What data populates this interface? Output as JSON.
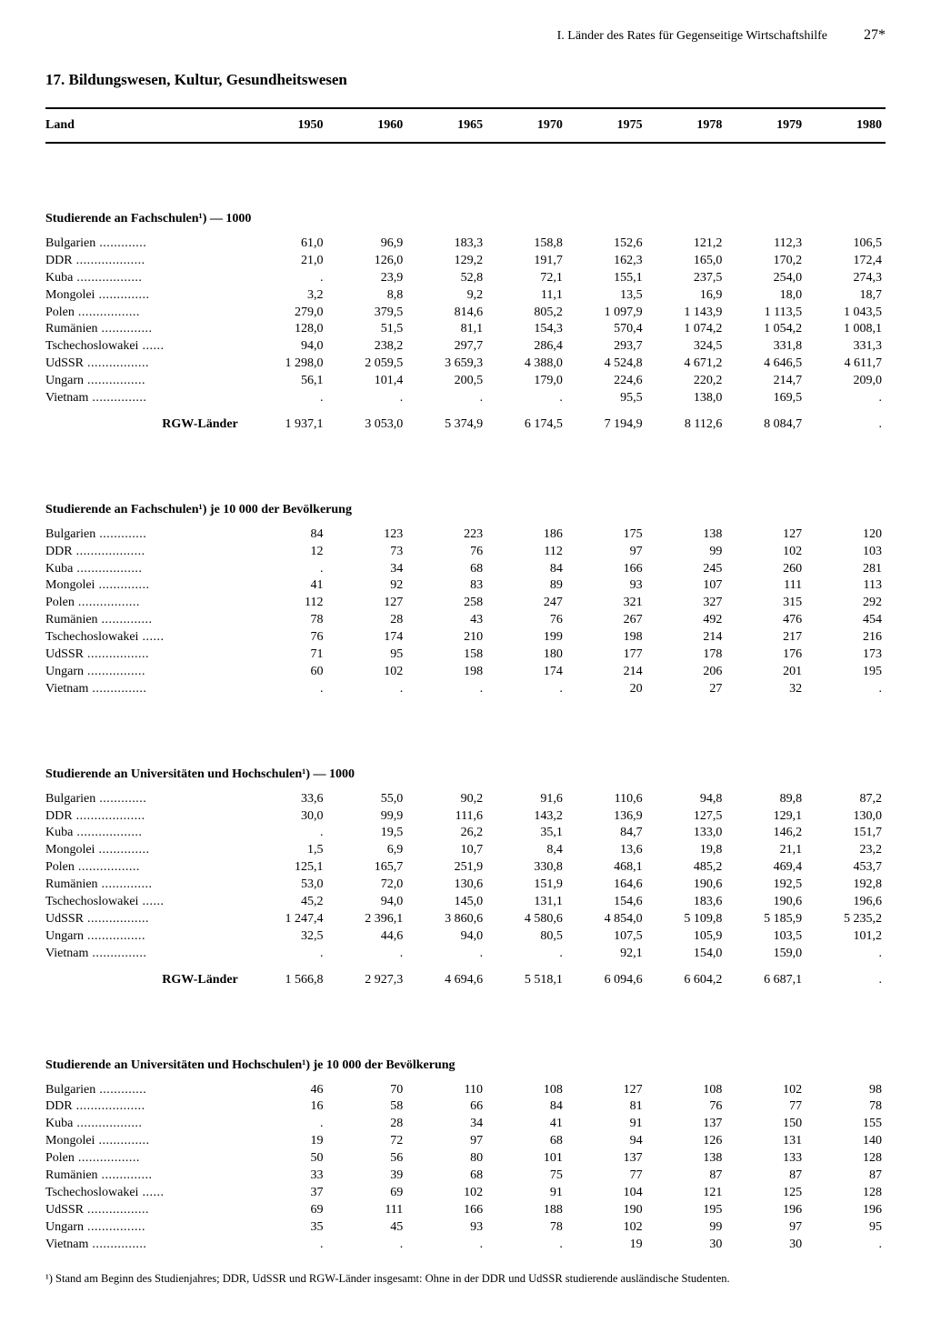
{
  "page": {
    "header_text": "I. Länder des Rates für Gegenseitige Wirtschaftshilfe",
    "page_number": "27*",
    "section_number": "17.",
    "section_title": "Bildungswesen, Kultur, Gesundheitswesen",
    "col_header": "Land",
    "years": [
      "1950",
      "1960",
      "1965",
      "1970",
      "1975",
      "1978",
      "1979",
      "1980"
    ],
    "footnote_marker": "¹)",
    "footnote_text": "Stand am Beginn des Studienjahres; DDR, UdSSR und RGW-Länder insgesamt: Ohne in der DDR und UdSSR studierende ausländische Studenten."
  },
  "countries": [
    "Bulgarien",
    "DDR",
    "Kuba",
    "Mongolei",
    "Polen",
    "Rumänien",
    "Tschechoslowakei",
    "UdSSR",
    "Ungarn",
    "Vietnam"
  ],
  "totals_label": "RGW-Länder",
  "sections": [
    {
      "title": "Studierende an Fachschulen¹) — 1000",
      "rows": [
        [
          "61,0",
          "96,9",
          "183,3",
          "158,8",
          "152,6",
          "121,2",
          "112,3",
          "106,5"
        ],
        [
          "21,0",
          "126,0",
          "129,2",
          "191,7",
          "162,3",
          "165,0",
          "170,2",
          "172,4"
        ],
        [
          ".",
          "23,9",
          "52,8",
          "72,1",
          "155,1",
          "237,5",
          "254,0",
          "274,3"
        ],
        [
          "3,2",
          "8,8",
          "9,2",
          "11,1",
          "13,5",
          "16,9",
          "18,0",
          "18,7"
        ],
        [
          "279,0",
          "379,5",
          "814,6",
          "805,2",
          "1 097,9",
          "1 143,9",
          "1 113,5",
          "1 043,5"
        ],
        [
          "128,0",
          "51,5",
          "81,1",
          "154,3",
          "570,4",
          "1 074,2",
          "1 054,2",
          "1 008,1"
        ],
        [
          "94,0",
          "238,2",
          "297,7",
          "286,4",
          "293,7",
          "324,5",
          "331,8",
          "331,3"
        ],
        [
          "1 298,0",
          "2 059,5",
          "3 659,3",
          "4 388,0",
          "4 524,8",
          "4 671,2",
          "4 646,5",
          "4 611,7"
        ],
        [
          "56,1",
          "101,4",
          "200,5",
          "179,0",
          "224,6",
          "220,2",
          "214,7",
          "209,0"
        ],
        [
          ".",
          ".",
          ".",
          ".",
          "95,5",
          "138,0",
          "169,5",
          "."
        ]
      ],
      "totals": [
        "1 937,1",
        "3 053,0",
        "5 374,9",
        "6 174,5",
        "7 194,9",
        "8 112,6",
        "8 084,7",
        "."
      ]
    },
    {
      "title": "Studierende an Fachschulen¹) je 10 000 der Bevölkerung",
      "rows": [
        [
          "84",
          "123",
          "223",
          "186",
          "175",
          "138",
          "127",
          "120"
        ],
        [
          "12",
          "73",
          "76",
          "112",
          "97",
          "99",
          "102",
          "103"
        ],
        [
          ".",
          "34",
          "68",
          "84",
          "166",
          "245",
          "260",
          "281"
        ],
        [
          "41",
          "92",
          "83",
          "89",
          "93",
          "107",
          "111",
          "113"
        ],
        [
          "112",
          "127",
          "258",
          "247",
          "321",
          "327",
          "315",
          "292"
        ],
        [
          "78",
          "28",
          "43",
          "76",
          "267",
          "492",
          "476",
          "454"
        ],
        [
          "76",
          "174",
          "210",
          "199",
          "198",
          "214",
          "217",
          "216"
        ],
        [
          "71",
          "95",
          "158",
          "180",
          "177",
          "178",
          "176",
          "173"
        ],
        [
          "60",
          "102",
          "198",
          "174",
          "214",
          "206",
          "201",
          "195"
        ],
        [
          ".",
          ".",
          ".",
          ".",
          "20",
          "27",
          "32",
          "."
        ]
      ],
      "totals": null
    },
    {
      "title": "Studierende an Universitäten und Hochschulen¹) — 1000",
      "rows": [
        [
          "33,6",
          "55,0",
          "90,2",
          "91,6",
          "110,6",
          "94,8",
          "89,8",
          "87,2"
        ],
        [
          "30,0",
          "99,9",
          "111,6",
          "143,2",
          "136,9",
          "127,5",
          "129,1",
          "130,0"
        ],
        [
          ".",
          "19,5",
          "26,2",
          "35,1",
          "84,7",
          "133,0",
          "146,2",
          "151,7"
        ],
        [
          "1,5",
          "6,9",
          "10,7",
          "8,4",
          "13,6",
          "19,8",
          "21,1",
          "23,2"
        ],
        [
          "125,1",
          "165,7",
          "251,9",
          "330,8",
          "468,1",
          "485,2",
          "469,4",
          "453,7"
        ],
        [
          "53,0",
          "72,0",
          "130,6",
          "151,9",
          "164,6",
          "190,6",
          "192,5",
          "192,8"
        ],
        [
          "45,2",
          "94,0",
          "145,0",
          "131,1",
          "154,6",
          "183,6",
          "190,6",
          "196,6"
        ],
        [
          "1 247,4",
          "2 396,1",
          "3 860,6",
          "4 580,6",
          "4 854,0",
          "5 109,8",
          "5 185,9",
          "5 235,2"
        ],
        [
          "32,5",
          "44,6",
          "94,0",
          "80,5",
          "107,5",
          "105,9",
          "103,5",
          "101,2"
        ],
        [
          ".",
          ".",
          ".",
          ".",
          "92,1",
          "154,0",
          "159,0",
          "."
        ]
      ],
      "totals": [
        "1 566,8",
        "2 927,3",
        "4 694,6",
        "5 518,1",
        "6 094,6",
        "6 604,2",
        "6 687,1",
        "."
      ]
    },
    {
      "title": "Studierende an Universitäten und Hochschulen¹) je 10 000 der Bevölkerung",
      "rows": [
        [
          "46",
          "70",
          "110",
          "108",
          "127",
          "108",
          "102",
          "98"
        ],
        [
          "16",
          "58",
          "66",
          "84",
          "81",
          "76",
          "77",
          "78"
        ],
        [
          ".",
          "28",
          "34",
          "41",
          "91",
          "137",
          "150",
          "155"
        ],
        [
          "19",
          "72",
          "97",
          "68",
          "94",
          "126",
          "131",
          "140"
        ],
        [
          "50",
          "56",
          "80",
          "101",
          "137",
          "138",
          "133",
          "128"
        ],
        [
          "33",
          "39",
          "68",
          "75",
          "77",
          "87",
          "87",
          "87"
        ],
        [
          "37",
          "69",
          "102",
          "91",
          "104",
          "121",
          "125",
          "128"
        ],
        [
          "69",
          "111",
          "166",
          "188",
          "190",
          "195",
          "196",
          "196"
        ],
        [
          "35",
          "45",
          "93",
          "78",
          "102",
          "99",
          "97",
          "95"
        ],
        [
          ".",
          ".",
          ".",
          ".",
          "19",
          "30",
          "30",
          "."
        ]
      ],
      "totals": null
    }
  ],
  "style": {
    "background_color": "#ffffff",
    "text_color": "#000000",
    "font_family": "Georgia, 'Times New Roman', serif",
    "body_fontsize": 14,
    "title_fontsize": 17,
    "footnote_fontsize": 12.5,
    "rule_weight_heavy": 2,
    "rule_weight_light": 1,
    "col_widths_pct": [
      24,
      9.5,
      9.5,
      9.5,
      9.5,
      9.5,
      9.5,
      9.5,
      9.5
    ],
    "dots_count": 18
  }
}
